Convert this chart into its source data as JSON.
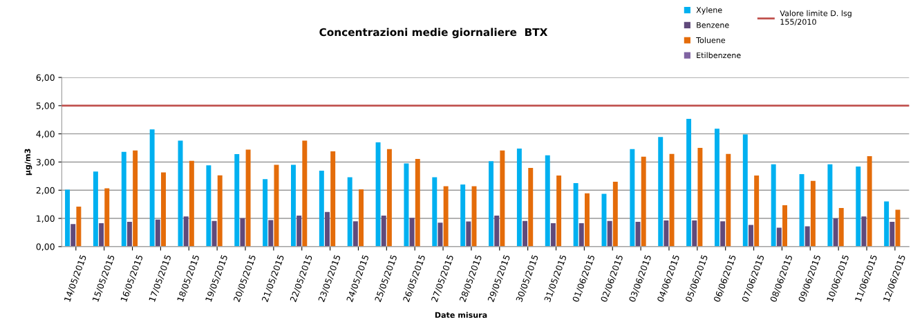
{
  "chart_data": {
    "type": "bar",
    "title": "Concentrazioni medie giornaliere  BTX",
    "xlabel": "Date misura",
    "ylabel": "µg/m3",
    "categories": [
      "14/05/2015",
      "15/05/2015",
      "16/05/2015",
      "17/05/2015",
      "18/05/2015",
      "19/05/2015",
      "20/05/2015",
      "21/05/2015",
      "22/05/2015",
      "23/05/2015",
      "24/05/2015",
      "25/05/2015",
      "26/05/2015",
      "27/05/2015",
      "28/05/2015",
      "29/05/2015",
      "30/05/2015",
      "31/05/2015",
      "01/06/2015",
      "02/06/2015",
      "03/06/2015",
      "04/06/2015",
      "05/06/2015",
      "06/06/2015",
      "07/06/2015",
      "08/06/2015",
      "09/06/2015",
      "10/06/2015",
      "11/06/2015",
      "12/06/2015"
    ],
    "series": [
      {
        "name": "Xylene",
        "color": "#00b0f0",
        "values": [
          2.02,
          2.66,
          3.36,
          4.16,
          3.76,
          2.88,
          3.28,
          2.39,
          2.9,
          2.69,
          2.46,
          3.7,
          2.95,
          2.46,
          2.2,
          3.03,
          3.48,
          3.24,
          2.25,
          1.87,
          3.46,
          3.89,
          4.53,
          4.18,
          3.98,
          2.92,
          2.57,
          2.92,
          2.84,
          1.6
        ]
      },
      {
        "name": "Benzene",
        "color": "#604a7b",
        "values": [
          0.8,
          0.83,
          0.88,
          0.96,
          1.07,
          0.91,
          1.01,
          0.94,
          1.1,
          1.23,
          0.9,
          1.1,
          1.02,
          0.85,
          0.89,
          1.1,
          0.91,
          0.83,
          0.83,
          0.91,
          0.88,
          0.93,
          0.93,
          0.9,
          0.77,
          0.67,
          0.72,
          1.0,
          1.07,
          0.88
        ]
      },
      {
        "name": "Toluene",
        "color": "#e46c0a",
        "values": [
          1.42,
          2.07,
          3.41,
          2.63,
          3.04,
          2.53,
          3.44,
          2.9,
          3.76,
          3.38,
          2.03,
          3.46,
          3.11,
          2.14,
          2.14,
          3.41,
          2.79,
          2.52,
          1.89,
          2.3,
          3.19,
          3.29,
          3.5,
          3.29,
          2.52,
          1.47,
          2.33,
          1.37,
          3.21,
          1.31
        ]
      },
      {
        "name": "Etilbenzene",
        "color": "#8064a2",
        "values": [
          null,
          null,
          null,
          null,
          null,
          null,
          null,
          null,
          null,
          null,
          null,
          null,
          null,
          null,
          null,
          null,
          null,
          null,
          null,
          null,
          null,
          null,
          null,
          null,
          null,
          null,
          null,
          null,
          null,
          null
        ]
      }
    ],
    "ref_lines": [
      {
        "axis": "y",
        "value": 5.0,
        "label": "Valore limite D. lsg\n155/2010",
        "color": "#c0504d"
      }
    ],
    "ylim": [
      0,
      6
    ],
    "yticks": [
      {
        "value": 0,
        "label": "0,00"
      },
      {
        "value": 1,
        "label": "1,00"
      },
      {
        "value": 2,
        "label": "2,00"
      },
      {
        "value": 3,
        "label": "3,00"
      },
      {
        "value": 4,
        "label": "4,00"
      },
      {
        "value": 5,
        "label": "5,00"
      },
      {
        "value": 6,
        "label": "6,00"
      }
    ],
    "grid": "y",
    "legend": "top right"
  }
}
